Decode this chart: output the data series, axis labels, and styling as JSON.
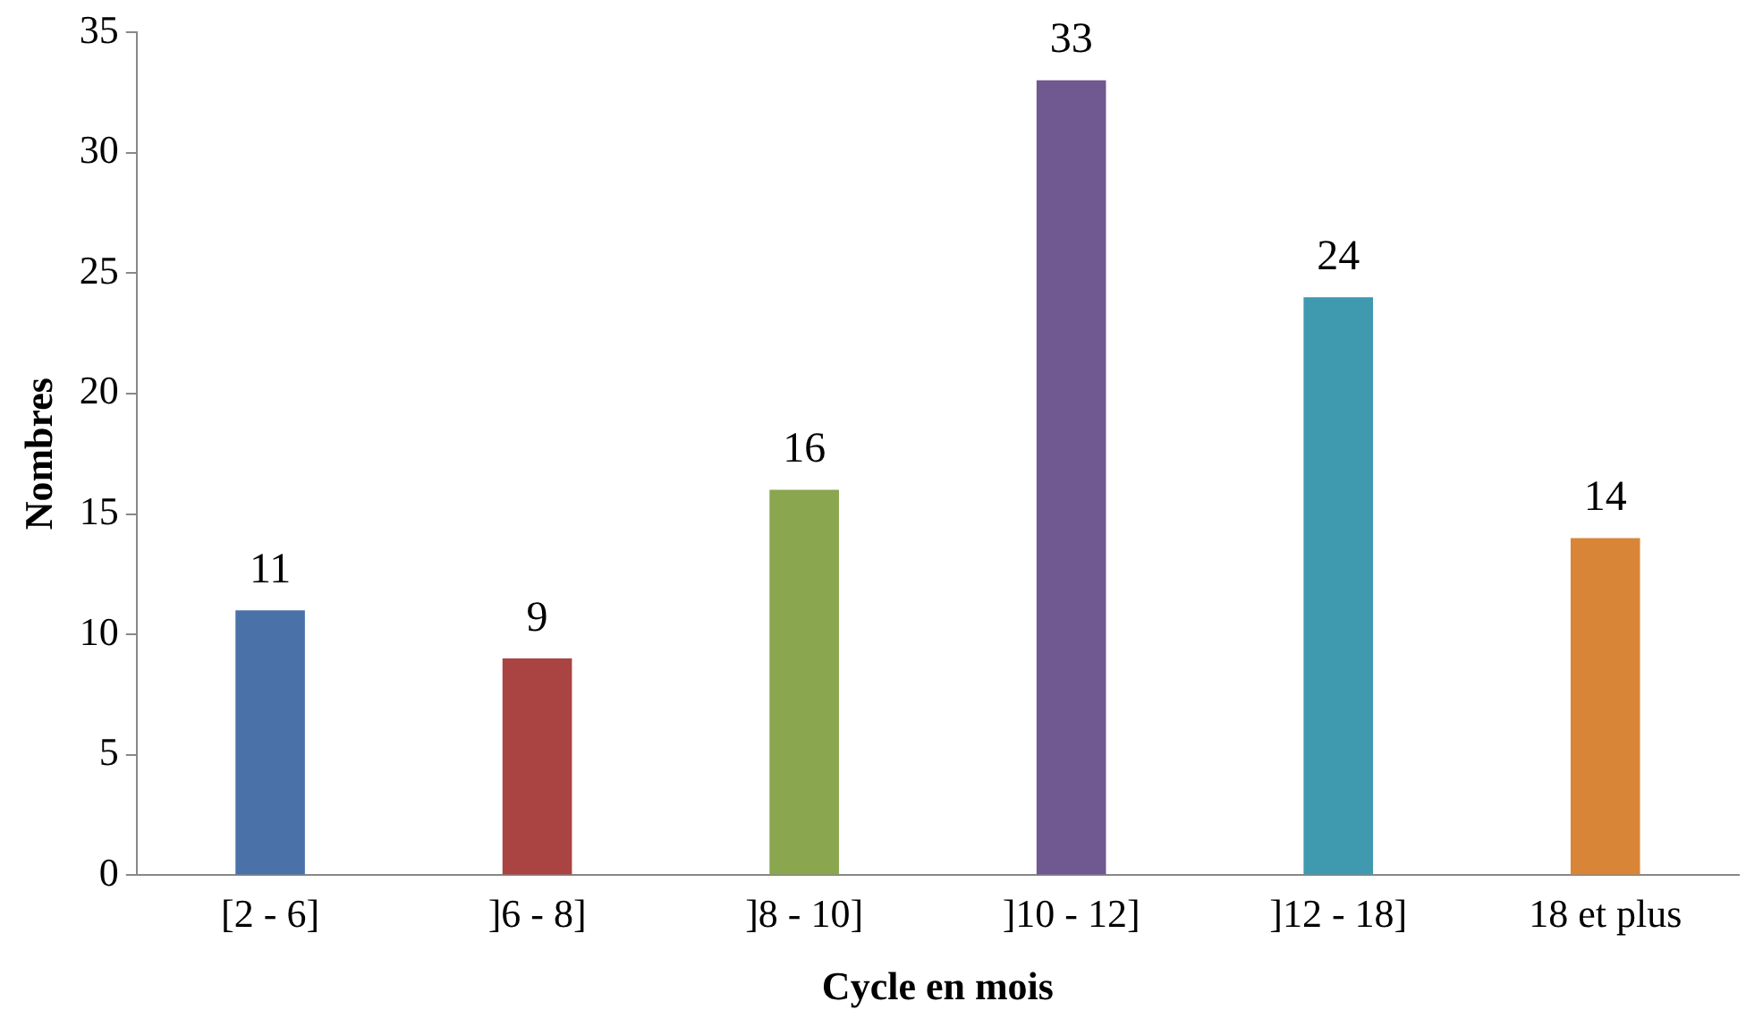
{
  "chart_data": {
    "type": "bar",
    "xlabel": "Cycle en mois",
    "ylabel": "Nombres",
    "categories": [
      "[2 - 6]",
      "]6 - 8]",
      "]8 - 10]",
      "]10 - 12]",
      "]12 - 18]",
      "18 et plus"
    ],
    "values": [
      11,
      9,
      16,
      33,
      24,
      14
    ],
    "colors": [
      "#4a72a8",
      "#a94442",
      "#8aa64e",
      "#705890",
      "#3f9ab0",
      "#d98538"
    ],
    "ylim": [
      0,
      35
    ],
    "yticks": [
      0,
      5,
      10,
      15,
      20,
      25,
      30,
      35
    ],
    "grid": false,
    "legend": false,
    "data_labels": true
  }
}
